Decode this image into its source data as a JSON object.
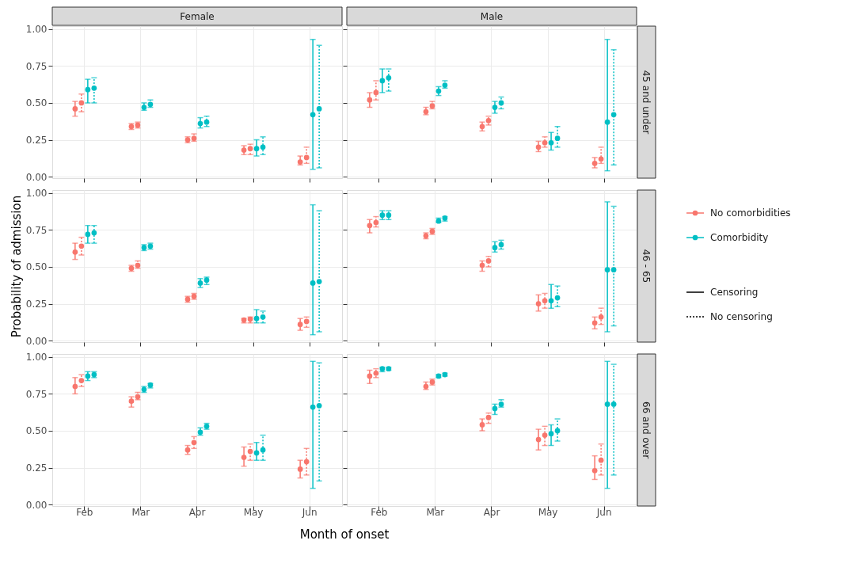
{
  "chart_data": [
    {
      "type": "scatter",
      "title": "Female",
      "legend": "right",
      "marker": "circle",
      "grid": true,
      "tick_labels": "y",
      "annotations": [
        "Censoring",
        "No censoring"
      ],
      "categories": [
        "Feb",
        "Mar",
        "Apr",
        "May",
        "Jun"
      ],
      "ylim": [
        -0.01,
        1.02
      ],
      "yticks": [
        {
          "value": 0,
          "label": "0.00"
        },
        {
          "value": 0.25,
          "label": "0.25"
        },
        {
          "value": 0.5,
          "label": "0.50"
        },
        {
          "value": 0.75,
          "label": "0.75"
        },
        {
          "value": 1,
          "label": "1.00"
        }
      ],
      "series": [
        {
          "name": "No comorbidities",
          "color": "#f8766d",
          "line_style": "solid",
          "values": [
            0.46,
            0.34,
            0.25,
            0.18,
            0.1
          ],
          "errors": [
            [
              0.41,
              0.51
            ],
            [
              0.32,
              0.36
            ],
            [
              0.23,
              0.27
            ],
            [
              0.15,
              0.21
            ],
            [
              0.08,
              0.14
            ]
          ]
        },
        {
          "color": "#f8766d",
          "line_style": "dotted",
          "values": [
            0.5,
            0.35,
            0.26,
            0.19,
            0.13
          ],
          "errors": [
            [
              0.44,
              0.56
            ],
            [
              0.33,
              0.37
            ],
            [
              0.24,
              0.29
            ],
            [
              0.15,
              0.22
            ],
            [
              0.09,
              0.2
            ]
          ]
        },
        {
          "name": "Comorbidity",
          "color": "#00bfc4",
          "line_style": "solid",
          "values": [
            0.59,
            0.47,
            0.36,
            0.19,
            0.42
          ],
          "errors": [
            [
              0.5,
              0.66
            ],
            [
              0.45,
              0.5
            ],
            [
              0.33,
              0.4
            ],
            [
              0.14,
              0.25
            ],
            [
              0.05,
              0.93
            ]
          ]
        },
        {
          "color": "#00bfc4",
          "line_style": "dotted",
          "values": [
            0.6,
            0.49,
            0.37,
            0.2,
            0.46
          ],
          "errors": [
            [
              0.5,
              0.67
            ],
            [
              0.47,
              0.52
            ],
            [
              0.34,
              0.41
            ],
            [
              0.15,
              0.27
            ],
            [
              0.06,
              0.89
            ]
          ]
        }
      ]
    },
    {
      "type": "scatter",
      "title": "Male",
      "subtitle": "45 and under",
      "marker": "circle",
      "grid": true,
      "tick_labels": false,
      "categories": [
        "Feb",
        "Mar",
        "Apr",
        "May",
        "Jun"
      ],
      "ylim": [
        -0.01,
        1.02
      ],
      "yticks": [
        {
          "value": 0,
          "label": "0.00"
        },
        {
          "value": 0.25,
          "label": "0.25"
        },
        {
          "value": 0.5,
          "label": "0.50"
        },
        {
          "value": 0.75,
          "label": "0.75"
        },
        {
          "value": 1,
          "label": "1.00"
        }
      ],
      "series": [
        {
          "name": "No comorbidities",
          "color": "#f8766d",
          "line_style": "solid",
          "values": [
            0.52,
            0.44,
            0.34,
            0.2,
            0.09
          ],
          "errors": [
            [
              0.47,
              0.57
            ],
            [
              0.42,
              0.47
            ],
            [
              0.31,
              0.37
            ],
            [
              0.17,
              0.24
            ],
            [
              0.06,
              0.13
            ]
          ]
        },
        {
          "color": "#f8766d",
          "line_style": "dotted",
          "values": [
            0.57,
            0.48,
            0.38,
            0.23,
            0.12
          ],
          "errors": [
            [
              0.52,
              0.65
            ],
            [
              0.46,
              0.51
            ],
            [
              0.35,
              0.41
            ],
            [
              0.2,
              0.27
            ],
            [
              0.09,
              0.2
            ]
          ]
        },
        {
          "name": "Comorbidity",
          "color": "#00bfc4",
          "line_style": "solid",
          "values": [
            0.65,
            0.58,
            0.47,
            0.23,
            0.37
          ],
          "errors": [
            [
              0.57,
              0.73
            ],
            [
              0.55,
              0.61
            ],
            [
              0.43,
              0.51
            ],
            [
              0.18,
              0.3
            ],
            [
              0.04,
              0.93
            ]
          ]
        },
        {
          "color": "#00bfc4",
          "line_style": "dotted",
          "values": [
            0.67,
            0.62,
            0.5,
            0.26,
            0.42
          ],
          "errors": [
            [
              0.58,
              0.73
            ],
            [
              0.6,
              0.65
            ],
            [
              0.46,
              0.54
            ],
            [
              0.2,
              0.34
            ],
            [
              0.08,
              0.86
            ]
          ]
        }
      ]
    },
    {
      "type": "scatter",
      "ylabel": "Probability of admission",
      "marker": "circle",
      "grid": true,
      "tick_labels": "y",
      "categories": [
        "Feb",
        "Mar",
        "Apr",
        "May",
        "Jun"
      ],
      "ylim": [
        -0.01,
        1.02
      ],
      "yticks": [
        {
          "value": 0,
          "label": "0.00"
        },
        {
          "value": 0.25,
          "label": "0.25"
        },
        {
          "value": 0.5,
          "label": "0.50"
        },
        {
          "value": 0.75,
          "label": "0.75"
        },
        {
          "value": 1,
          "label": "1.00"
        }
      ],
      "series": [
        {
          "name": "No comorbidities",
          "color": "#f8766d",
          "line_style": "solid",
          "values": [
            0.6,
            0.49,
            0.28,
            0.14,
            0.11
          ],
          "errors": [
            [
              0.55,
              0.66
            ],
            [
              0.47,
              0.51
            ],
            [
              0.26,
              0.3
            ],
            [
              0.12,
              0.15
            ],
            [
              0.07,
              0.15
            ]
          ]
        },
        {
          "color": "#f8766d",
          "line_style": "dotted",
          "values": [
            0.64,
            0.51,
            0.3,
            0.145,
            0.13
          ],
          "errors": [
            [
              0.58,
              0.7
            ],
            [
              0.49,
              0.54
            ],
            [
              0.28,
              0.32
            ],
            [
              0.12,
              0.16
            ],
            [
              0.09,
              0.16
            ]
          ]
        },
        {
          "name": "Comorbidity",
          "color": "#00bfc4",
          "line_style": "solid",
          "values": [
            0.72,
            0.63,
            0.39,
            0.15,
            0.39
          ],
          "errors": [
            [
              0.66,
              0.78
            ],
            [
              0.61,
              0.65
            ],
            [
              0.36,
              0.42
            ],
            [
              0.12,
              0.21
            ],
            [
              0.04,
              0.92
            ]
          ]
        },
        {
          "color": "#00bfc4",
          "line_style": "dotted",
          "values": [
            0.73,
            0.64,
            0.41,
            0.16,
            0.4
          ],
          "errors": [
            [
              0.66,
              0.78
            ],
            [
              0.62,
              0.66
            ],
            [
              0.38,
              0.43
            ],
            [
              0.12,
              0.2
            ],
            [
              0.06,
              0.88
            ]
          ]
        }
      ]
    },
    {
      "type": "scatter",
      "subtitle": "46 - 65",
      "marker": "circle",
      "grid": true,
      "tick_labels": false,
      "categories": [
        "Feb",
        "Mar",
        "Apr",
        "May",
        "Jun"
      ],
      "ylim": [
        -0.01,
        1.02
      ],
      "yticks": [
        {
          "value": 0,
          "label": "0.00"
        },
        {
          "value": 0.25,
          "label": "0.25"
        },
        {
          "value": 0.5,
          "label": "0.50"
        },
        {
          "value": 0.75,
          "label": "0.75"
        },
        {
          "value": 1,
          "label": "1.00"
        }
      ],
      "series": [
        {
          "name": "No comorbidities",
          "color": "#f8766d",
          "line_style": "solid",
          "values": [
            0.78,
            0.71,
            0.51,
            0.25,
            0.12
          ],
          "errors": [
            [
              0.73,
              0.82
            ],
            [
              0.69,
              0.73
            ],
            [
              0.47,
              0.54
            ],
            [
              0.2,
              0.31
            ],
            [
              0.08,
              0.16
            ]
          ]
        },
        {
          "color": "#f8766d",
          "line_style": "dotted",
          "values": [
            0.8,
            0.74,
            0.54,
            0.27,
            0.16
          ],
          "errors": [
            [
              0.77,
              0.84
            ],
            [
              0.72,
              0.76
            ],
            [
              0.5,
              0.57
            ],
            [
              0.22,
              0.32
            ],
            [
              0.11,
              0.22
            ]
          ]
        },
        {
          "name": "Comorbidity",
          "color": "#00bfc4",
          "line_style": "solid",
          "values": [
            0.85,
            0.81,
            0.63,
            0.27,
            0.48
          ],
          "errors": [
            [
              0.82,
              0.88
            ],
            [
              0.8,
              0.83
            ],
            [
              0.6,
              0.67
            ],
            [
              0.22,
              0.38
            ],
            [
              0.06,
              0.94
            ]
          ]
        },
        {
          "color": "#00bfc4",
          "line_style": "dotted",
          "values": [
            0.85,
            0.83,
            0.65,
            0.29,
            0.48
          ],
          "errors": [
            [
              0.82,
              0.88
            ],
            [
              0.81,
              0.84
            ],
            [
              0.62,
              0.68
            ],
            [
              0.23,
              0.37
            ],
            [
              0.1,
              0.91
            ]
          ]
        }
      ]
    },
    {
      "type": "scatter",
      "xlabel": "Month of onset",
      "marker": "circle",
      "grid": true,
      "categories": [
        "Feb",
        "Mar",
        "Apr",
        "May",
        "Jun"
      ],
      "ylim": [
        -0.01,
        1.02
      ],
      "yticks": [
        {
          "value": 0,
          "label": "0.00"
        },
        {
          "value": 0.25,
          "label": "0.25"
        },
        {
          "value": 0.5,
          "label": "0.50"
        },
        {
          "value": 0.75,
          "label": "0.75"
        },
        {
          "value": 1,
          "label": "1.00"
        }
      ],
      "series": [
        {
          "name": "No comorbidities",
          "color": "#f8766d",
          "line_style": "solid",
          "values": [
            0.8,
            0.7,
            0.37,
            0.32,
            0.24
          ],
          "errors": [
            [
              0.75,
              0.86
            ],
            [
              0.66,
              0.73
            ],
            [
              0.34,
              0.4
            ],
            [
              0.26,
              0.39
            ],
            [
              0.18,
              0.3
            ]
          ]
        },
        {
          "color": "#f8766d",
          "line_style": "dotted",
          "values": [
            0.84,
            0.73,
            0.42,
            0.36,
            0.29
          ],
          "errors": [
            [
              0.8,
              0.88
            ],
            [
              0.71,
              0.76
            ],
            [
              0.38,
              0.46
            ],
            [
              0.3,
              0.41
            ],
            [
              0.2,
              0.38
            ]
          ]
        },
        {
          "name": "Comorbidity",
          "color": "#00bfc4",
          "line_style": "solid",
          "values": [
            0.87,
            0.78,
            0.49,
            0.35,
            0.66
          ],
          "errors": [
            [
              0.84,
              0.9
            ],
            [
              0.76,
              0.8
            ],
            [
              0.47,
              0.52
            ],
            [
              0.3,
              0.42
            ],
            [
              0.11,
              0.97
            ]
          ]
        },
        {
          "color": "#00bfc4",
          "line_style": "dotted",
          "values": [
            0.88,
            0.81,
            0.53,
            0.37,
            0.67
          ],
          "errors": [
            [
              0.86,
              0.9
            ],
            [
              0.79,
              0.82
            ],
            [
              0.51,
              0.55
            ],
            [
              0.3,
              0.47
            ],
            [
              0.16,
              0.96
            ]
          ]
        }
      ]
    },
    {
      "type": "scatter",
      "subtitle": "66 and over",
      "marker": "circle",
      "grid": true,
      "tick_labels": "x",
      "categories": [
        "Feb",
        "Mar",
        "Apr",
        "May",
        "Jun"
      ],
      "ylim": [
        -0.01,
        1.02
      ],
      "yticks": [
        {
          "value": 0,
          "label": "0.00"
        },
        {
          "value": 0.25,
          "label": "0.25"
        },
        {
          "value": 0.5,
          "label": "0.50"
        },
        {
          "value": 0.75,
          "label": "0.75"
        },
        {
          "value": 1,
          "label": "1.00"
        }
      ],
      "series": [
        {
          "name": "No comorbidities",
          "color": "#f8766d",
          "line_style": "solid",
          "values": [
            0.87,
            0.8,
            0.54,
            0.44,
            0.23
          ],
          "errors": [
            [
              0.82,
              0.91
            ],
            [
              0.78,
              0.83
            ],
            [
              0.5,
              0.58
            ],
            [
              0.37,
              0.51
            ],
            [
              0.17,
              0.33
            ]
          ]
        },
        {
          "color": "#f8766d",
          "line_style": "dotted",
          "values": [
            0.89,
            0.83,
            0.59,
            0.47,
            0.3
          ],
          "errors": [
            [
              0.86,
              0.92
            ],
            [
              0.81,
              0.85
            ],
            [
              0.55,
              0.62
            ],
            [
              0.4,
              0.53
            ],
            [
              0.2,
              0.41
            ]
          ]
        },
        {
          "name": "Comorbidity",
          "color": "#00bfc4",
          "line_style": "solid",
          "values": [
            0.92,
            0.87,
            0.65,
            0.48,
            0.68
          ],
          "errors": [
            [
              0.9,
              0.93
            ],
            [
              0.86,
              0.88
            ],
            [
              0.61,
              0.68
            ],
            [
              0.4,
              0.54
            ],
            [
              0.11,
              0.97
            ]
          ]
        },
        {
          "color": "#00bfc4",
          "line_style": "dotted",
          "values": [
            0.92,
            0.88,
            0.68,
            0.5,
            0.68
          ],
          "errors": [
            [
              0.91,
              0.93
            ],
            [
              0.87,
              0.89
            ],
            [
              0.66,
              0.71
            ],
            [
              0.43,
              0.58
            ],
            [
              0.2,
              0.95
            ]
          ]
        }
      ]
    }
  ]
}
